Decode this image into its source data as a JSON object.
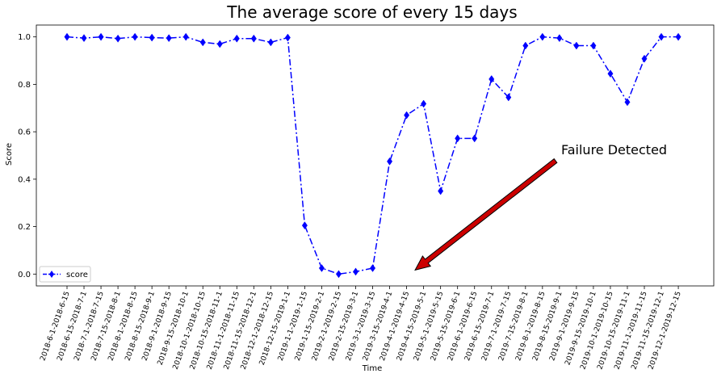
{
  "chart_data": {
    "type": "line",
    "title": "The average score of every 15 days",
    "xlabel": "Time",
    "ylabel": "Score",
    "ylim": [
      -0.05,
      1.05
    ],
    "yticks": [
      "0.0",
      "0.2",
      "0.4",
      "0.6",
      "0.8",
      "1.0"
    ],
    "grid": false,
    "legend_position": "lower-left",
    "categories": [
      "2018-6-1-2018-6-15",
      "2018-6-15-2018-7-1",
      "2018-7-1-2018-7-15",
      "2018-7-15-2018-8-1",
      "2018-8-1-2018-8-15",
      "2018-8-15-2018-9-1",
      "2018-9-1-2018-9-15",
      "2018-9-15-2018-10-1",
      "2018-10-1-2018-10-15",
      "2018-10-15-2018-11-1",
      "2018-11-1-2018-11-15",
      "2018-11-15-2018-12-1",
      "2018-12-1-2018-12-15",
      "2018-12-15-2019-1-1",
      "2019-1-1-2019-1-15",
      "2019-1-15-2019-2-1",
      "2019-2-1-2019-2-15",
      "2019-2-15-2019-3-1",
      "2019-3-1-2019-3-15",
      "2019-3-15-2019-4-1",
      "2019-4-1-2019-4-15",
      "2019-4-15-2019-5-1",
      "2019-5-1-2019-5-15",
      "2019-5-15-2019-6-1",
      "2019-6-1-2019-6-15",
      "2019-6-15-2019-7-1",
      "2019-7-1-2019-7-15",
      "2019-7-15-2019-8-1",
      "2019-8-1-2019-8-15",
      "2019-8-15-2019-9-1",
      "2019-9-1-2019-9-15",
      "2019-9-15-2019-10-1",
      "2019-10-1-2019-10-15",
      "2019-10-15-2019-11-1",
      "2019-11-1-2019-11-15",
      "2019-11-15-2019-12-1",
      "2019-12-1-2019-12-15"
    ],
    "series": [
      {
        "name": "score",
        "color": "#0000ff",
        "marker": "diamond",
        "linestyle": "dash-dot",
        "values": [
          1.0,
          0.995,
          1.0,
          0.993,
          1.0,
          0.997,
          0.995,
          1.0,
          0.977,
          0.97,
          0.993,
          0.993,
          0.977,
          0.997,
          0.205,
          0.025,
          0.0,
          0.01,
          0.025,
          0.475,
          0.67,
          0.718,
          0.35,
          0.572,
          0.572,
          0.822,
          0.745,
          0.963,
          1.0,
          0.995,
          0.963,
          0.963,
          0.845,
          0.725,
          0.908,
          1.0,
          1.0
        ]
      }
    ],
    "annotation": {
      "text": "Failure Detected",
      "arrow_target": {
        "x_index": 20.5,
        "y": 0.01
      },
      "arrow_color": "#cc0000"
    }
  }
}
